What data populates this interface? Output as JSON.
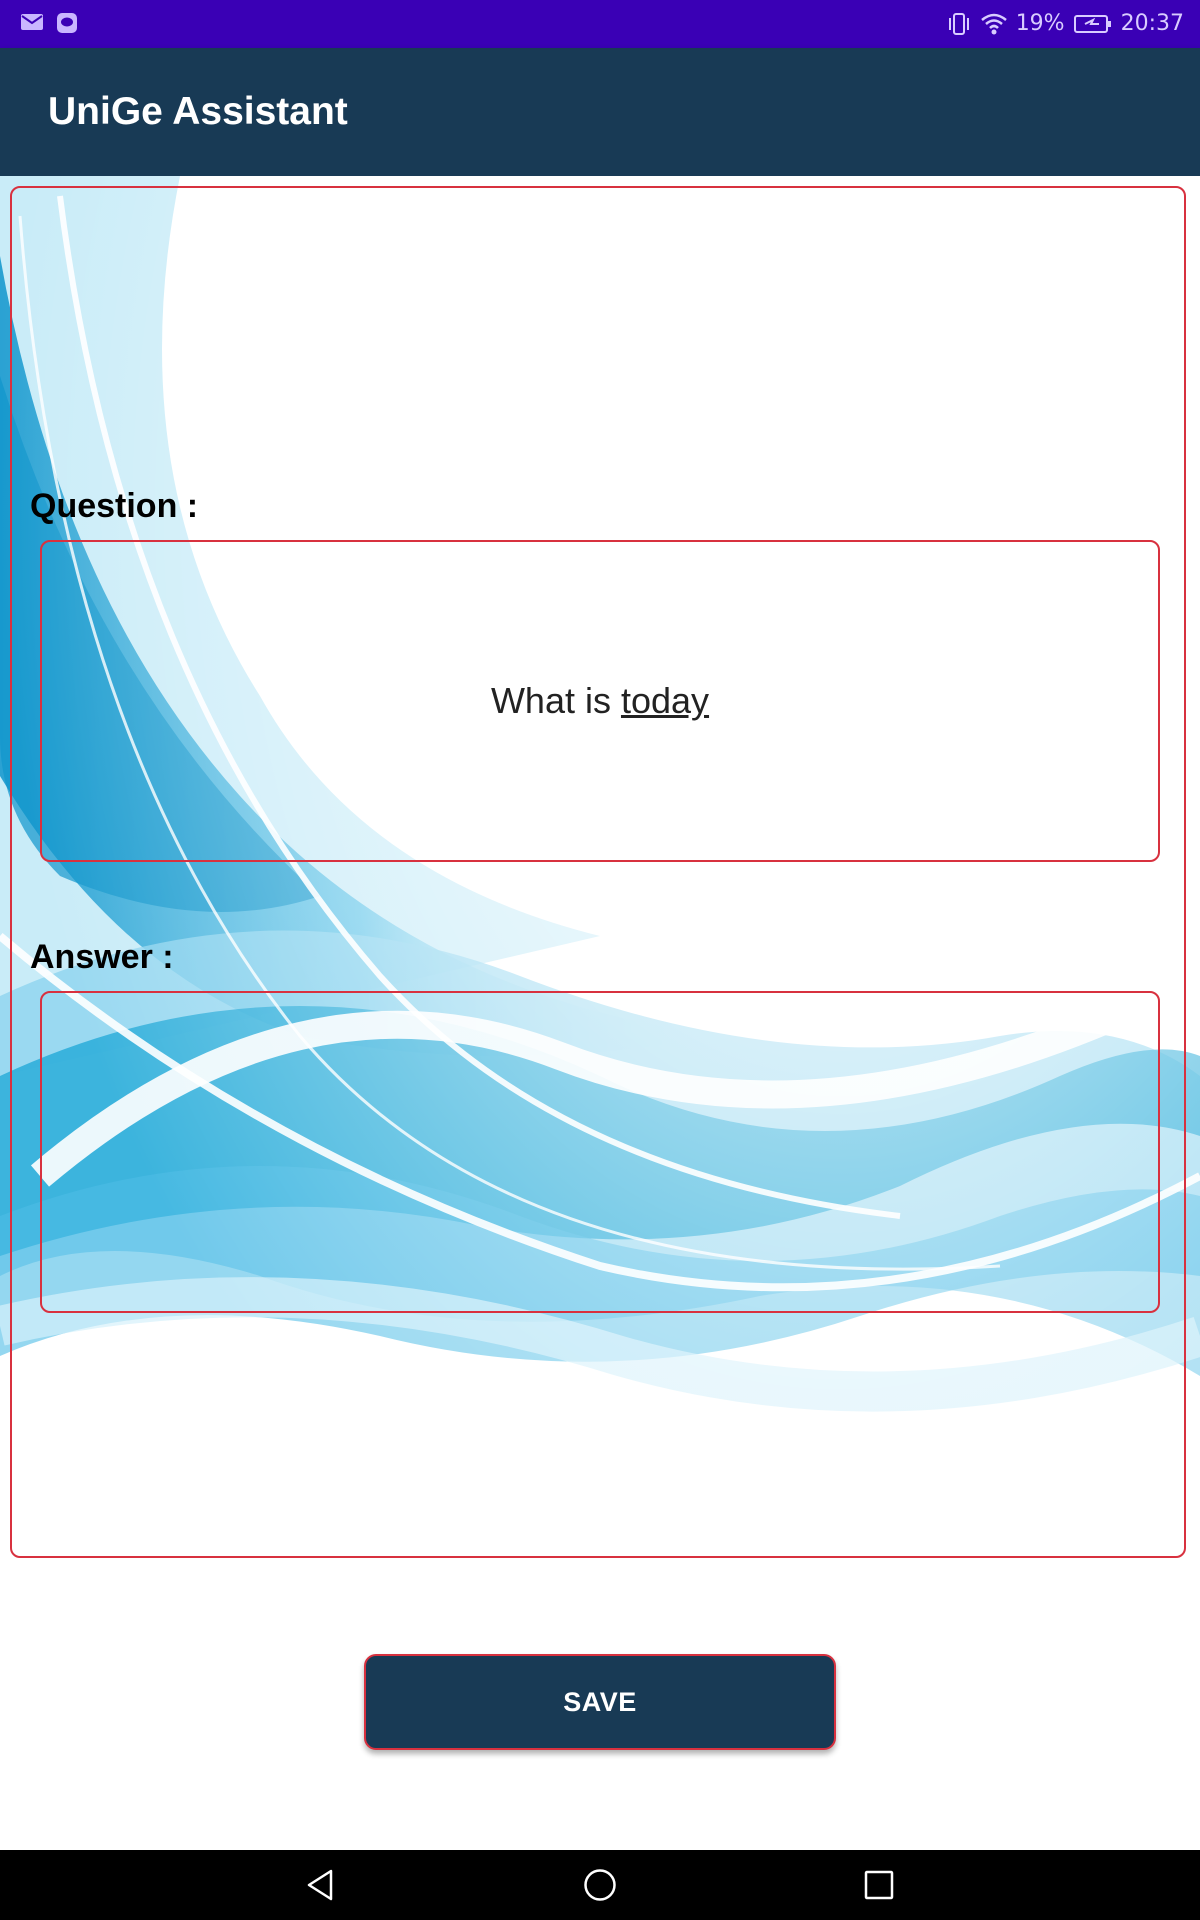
{
  "status_bar": {
    "left_icons": [
      "gmail-icon",
      "chat-bubble-icon"
    ],
    "right_icons": [
      "vibrate-icon",
      "wifi-icon",
      "battery-charging-icon"
    ],
    "battery_percent": "19%",
    "time": "20:37"
  },
  "app_bar": {
    "title": "UniGe Assistant"
  },
  "form": {
    "question_label": "Question :",
    "question_text_plain": "What is",
    "question_text_underlined": "today",
    "answer_label": "Answer :",
    "answer_value": ""
  },
  "save_button": {
    "label": "SAVE"
  },
  "nav_bar": {
    "icons": [
      "back-icon",
      "home-icon",
      "recents-icon"
    ]
  },
  "colors": {
    "status_bar": "#3a00b5",
    "app_bar": "#183a55",
    "field_border": "#d8313f",
    "wave_blue": "#1aa6d6"
  }
}
